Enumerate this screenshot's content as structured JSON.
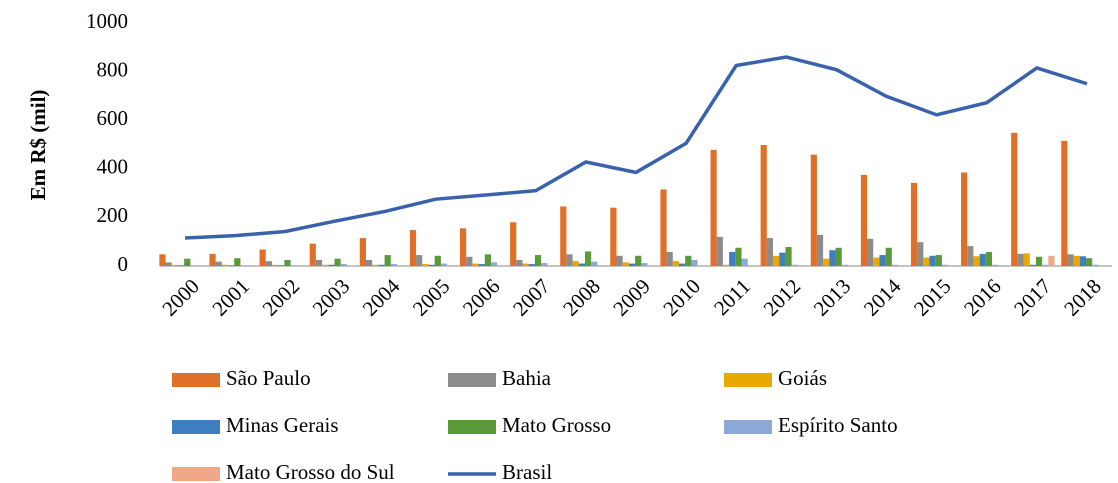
{
  "chart_data": {
    "type": "bar",
    "y_label": "Em R$ (mil)",
    "categories": [
      "2000",
      "2001",
      "2002",
      "2003",
      "2004",
      "2005",
      "2006",
      "2007",
      "2008",
      "2009",
      "2010",
      "2011",
      "2012",
      "2013",
      "2014",
      "2015",
      "2016",
      "2017",
      "2018"
    ],
    "series": [
      {
        "name": "São Paulo",
        "color": "#e07028",
        "values": [
          48,
          50,
          68,
          92,
          115,
          148,
          155,
          180,
          245,
          240,
          315,
          478,
          498,
          458,
          375,
          342,
          385,
          548,
          515
        ]
      },
      {
        "name": "Bahia",
        "color": "#8c8c8c",
        "values": [
          15,
          18,
          20,
          25,
          25,
          45,
          38,
          25,
          48,
          42,
          58,
          120,
          115,
          128,
          112,
          98,
          82,
          50,
          48
        ]
      },
      {
        "name": "Goiás",
        "color": "#e8a800",
        "values": [
          5,
          5,
          5,
          5,
          5,
          8,
          10,
          10,
          20,
          15,
          20,
          5,
          42,
          30,
          35,
          35,
          40,
          52,
          42
        ]
      },
      {
        "name": "Minas Gerais",
        "color": "#3d7fc0",
        "values": [
          3,
          3,
          3,
          5,
          5,
          5,
          8,
          8,
          10,
          10,
          10,
          58,
          55,
          65,
          45,
          42,
          50,
          5,
          40
        ]
      },
      {
        "name": "Mato Grosso",
        "color": "#5a9a3a",
        "values": [
          30,
          32,
          25,
          30,
          45,
          42,
          48,
          45,
          60,
          42,
          42,
          75,
          78,
          75,
          75,
          45,
          58,
          38,
          32
        ]
      },
      {
        "name": "Espírito Santo",
        "color": "#8ea8d8",
        "values": [
          3,
          3,
          3,
          8,
          8,
          10,
          15,
          12,
          18,
          12,
          25,
          30,
          5,
          5,
          5,
          5,
          5,
          5,
          5
        ]
      },
      {
        "name": "Mato Grosso do Sul",
        "color": "#f0a888",
        "values": [
          0,
          0,
          0,
          0,
          0,
          0,
          0,
          0,
          0,
          0,
          0,
          0,
          0,
          0,
          0,
          0,
          0,
          42,
          0
        ]
      },
      {
        "name": "Brasil",
        "color": "#3a62ac",
        "type": "line",
        "values": [
          115,
          125,
          142,
          185,
          225,
          275,
          292,
          310,
          428,
          385,
          505,
          825,
          860,
          808,
          698,
          622,
          672,
          815,
          750
        ]
      }
    ],
    "ylim": [
      0,
      1000
    ],
    "yticks": [
      0,
      200,
      400,
      600,
      800,
      1000
    ],
    "grid": false
  }
}
